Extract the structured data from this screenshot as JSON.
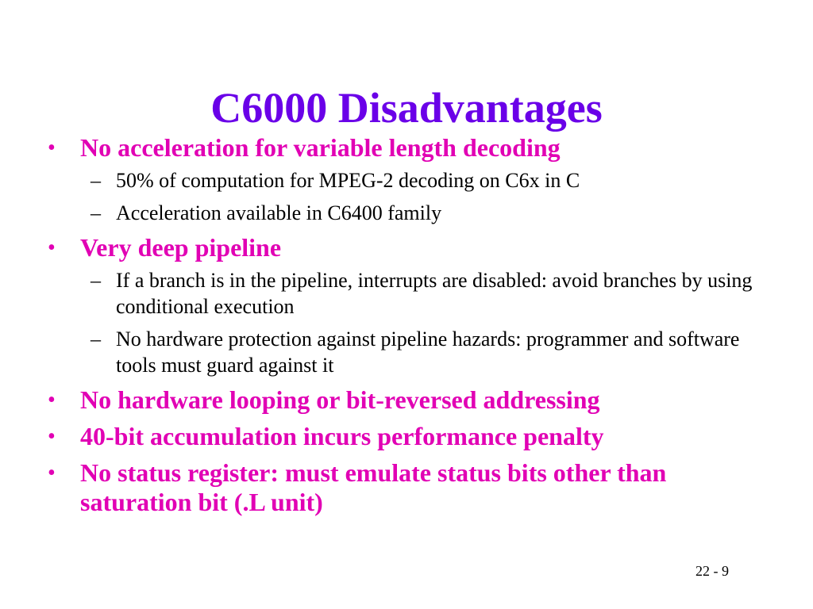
{
  "slide": {
    "title": "C6000 Disadvantages",
    "colors": {
      "title": "#6a00e8",
      "bullet": "#e100b4",
      "body": "#000000"
    },
    "bullet_glyph": "•",
    "sub_glyph": "–",
    "bullets": [
      {
        "text": "No acceleration for variable length decoding",
        "subs": [
          "50% of computation for MPEG-2 decoding on C6x in C",
          "Acceleration available in C6400 family"
        ]
      },
      {
        "text": "Very deep pipeline",
        "subs": [
          "If a branch is in the pipeline, interrupts are disabled: avoid branches by using conditional execution",
          "No hardware protection against pipeline hazards: programmer and software tools must guard against it"
        ]
      },
      {
        "text": "No hardware looping or bit-reversed addressing",
        "subs": []
      },
      {
        "text": "40-bit accumulation incurs performance penalty",
        "subs": []
      },
      {
        "text": "No status register: must emulate status bits other than saturation bit (.L unit)",
        "subs": []
      }
    ],
    "page_number": "22 - 9"
  }
}
